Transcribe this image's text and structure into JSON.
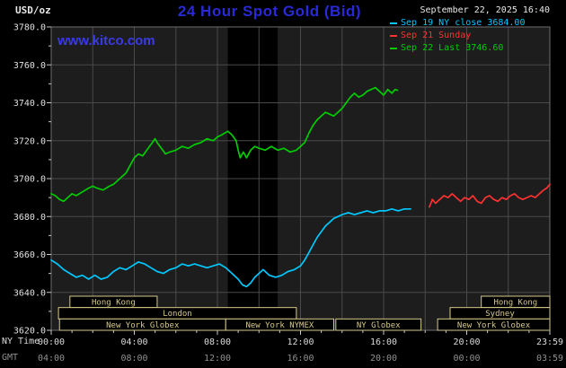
{
  "header": {
    "unit_label": "USD/oz",
    "title": "24 Hour Spot Gold (Bid)",
    "datetime": "September 22, 2025 16:40",
    "kitco_link": "www.kitco.com"
  },
  "legend": {
    "items": [
      {
        "label": "Sep 19 NY close 3684.00",
        "color": "#00c8ff"
      },
      {
        "label": "Sep 21 Sunday",
        "color": "#ff3232"
      },
      {
        "label": "Sep 22 Last 3746.60",
        "color": "#00cd00"
      }
    ]
  },
  "chart_data": {
    "type": "line",
    "title": "24 Hour Spot Gold (Bid)",
    "ylabel": "USD/oz",
    "ylim": [
      3620,
      3780
    ],
    "y_tick_step": 20,
    "y_tick_labels": [
      "3780.0",
      "3760.0",
      "3740.0",
      "3720.0",
      "3700.0",
      "3680.0",
      "3660.0",
      "3640.0",
      "3620.0"
    ],
    "x_caption_ny": "NY Time",
    "x_caption_gmt": "GMT",
    "x_range_hours": [
      0,
      24
    ],
    "x_tick_hours": [
      0,
      4,
      8,
      12,
      16,
      20,
      24
    ],
    "x_tick_labels_ny": [
      "00:00",
      "04:00",
      "08:00",
      "12:00",
      "16:00",
      "20:00",
      "23:59"
    ],
    "x_tick_labels_gmt": [
      "04:00",
      "08:00",
      "12:00",
      "16:00",
      "20:00",
      "00:00",
      "03:59"
    ],
    "grid": true,
    "legend_position": "top-right",
    "dark_band_hours": [
      8.5,
      10.9
    ],
    "series": [
      {
        "name": "Sep 19 NY close 3684.00",
        "color": "#00c8ff",
        "points": [
          [
            0,
            3657
          ],
          [
            0.3,
            3655
          ],
          [
            0.6,
            3652
          ],
          [
            0.9,
            3650
          ],
          [
            1.2,
            3648
          ],
          [
            1.5,
            3649
          ],
          [
            1.8,
            3647
          ],
          [
            2.1,
            3649
          ],
          [
            2.4,
            3647
          ],
          [
            2.7,
            3648
          ],
          [
            3,
            3651
          ],
          [
            3.3,
            3653
          ],
          [
            3.6,
            3652
          ],
          [
            3.9,
            3654
          ],
          [
            4.2,
            3656
          ],
          [
            4.5,
            3655
          ],
          [
            4.8,
            3653
          ],
          [
            5.1,
            3651
          ],
          [
            5.4,
            3650
          ],
          [
            5.7,
            3652
          ],
          [
            6,
            3653
          ],
          [
            6.3,
            3655
          ],
          [
            6.6,
            3654
          ],
          [
            6.9,
            3655
          ],
          [
            7.2,
            3654
          ],
          [
            7.5,
            3653
          ],
          [
            7.8,
            3654
          ],
          [
            8.1,
            3655
          ],
          [
            8.4,
            3653
          ],
          [
            8.7,
            3650
          ],
          [
            9,
            3647
          ],
          [
            9.2,
            3644
          ],
          [
            9.4,
            3643
          ],
          [
            9.6,
            3645
          ],
          [
            9.8,
            3648
          ],
          [
            10,
            3650
          ],
          [
            10.2,
            3652
          ],
          [
            10.5,
            3649
          ],
          [
            10.8,
            3648
          ],
          [
            11.1,
            3649
          ],
          [
            11.4,
            3651
          ],
          [
            11.7,
            3652
          ],
          [
            12,
            3654
          ],
          [
            12.2,
            3657
          ],
          [
            12.4,
            3661
          ],
          [
            12.6,
            3665
          ],
          [
            12.8,
            3669
          ],
          [
            13,
            3672
          ],
          [
            13.2,
            3675
          ],
          [
            13.4,
            3677
          ],
          [
            13.6,
            3679
          ],
          [
            13.8,
            3680
          ],
          [
            14,
            3681
          ],
          [
            14.3,
            3682
          ],
          [
            14.6,
            3681
          ],
          [
            14.9,
            3682
          ],
          [
            15.2,
            3683
          ],
          [
            15.5,
            3682
          ],
          [
            15.8,
            3683
          ],
          [
            16.1,
            3683
          ],
          [
            16.4,
            3684
          ],
          [
            16.7,
            3683
          ],
          [
            17,
            3684
          ],
          [
            17.3,
            3684
          ]
        ]
      },
      {
        "name": "Sep 21 Sunday",
        "color": "#ff3232",
        "points": [
          [
            18.2,
            3685
          ],
          [
            18.35,
            3689
          ],
          [
            18.5,
            3687
          ],
          [
            18.7,
            3689
          ],
          [
            18.9,
            3691
          ],
          [
            19.1,
            3690
          ],
          [
            19.3,
            3692
          ],
          [
            19.5,
            3690
          ],
          [
            19.7,
            3688
          ],
          [
            19.9,
            3690
          ],
          [
            20.1,
            3689
          ],
          [
            20.3,
            3691
          ],
          [
            20.5,
            3688
          ],
          [
            20.7,
            3687
          ],
          [
            20.9,
            3690
          ],
          [
            21.1,
            3691
          ],
          [
            21.3,
            3689
          ],
          [
            21.5,
            3688
          ],
          [
            21.7,
            3690
          ],
          [
            21.9,
            3689
          ],
          [
            22.1,
            3691
          ],
          [
            22.3,
            3692
          ],
          [
            22.5,
            3690
          ],
          [
            22.7,
            3689
          ],
          [
            22.9,
            3690
          ],
          [
            23.1,
            3691
          ],
          [
            23.3,
            3690
          ],
          [
            23.5,
            3692
          ],
          [
            23.7,
            3694
          ],
          [
            23.85,
            3695
          ],
          [
            24,
            3697
          ]
        ]
      },
      {
        "name": "Sep 22 Last 3746.60",
        "color": "#00cd00",
        "points": [
          [
            0,
            3692
          ],
          [
            0.2,
            3691
          ],
          [
            0.4,
            3689
          ],
          [
            0.6,
            3688
          ],
          [
            0.8,
            3690
          ],
          [
            1,
            3692
          ],
          [
            1.2,
            3691
          ],
          [
            1.5,
            3693
          ],
          [
            1.8,
            3695
          ],
          [
            2,
            3696
          ],
          [
            2.2,
            3695
          ],
          [
            2.5,
            3694
          ],
          [
            2.8,
            3696
          ],
          [
            3,
            3697
          ],
          [
            3.2,
            3699
          ],
          [
            3.4,
            3701
          ],
          [
            3.6,
            3703
          ],
          [
            3.8,
            3707
          ],
          [
            4,
            3711
          ],
          [
            4.2,
            3713
          ],
          [
            4.4,
            3712
          ],
          [
            4.6,
            3715
          ],
          [
            4.8,
            3718
          ],
          [
            5,
            3721
          ],
          [
            5.1,
            3719
          ],
          [
            5.3,
            3716
          ],
          [
            5.5,
            3713
          ],
          [
            5.7,
            3714
          ],
          [
            6,
            3715
          ],
          [
            6.3,
            3717
          ],
          [
            6.6,
            3716
          ],
          [
            6.9,
            3718
          ],
          [
            7.2,
            3719
          ],
          [
            7.5,
            3721
          ],
          [
            7.8,
            3720
          ],
          [
            8,
            3722
          ],
          [
            8.2,
            3723
          ],
          [
            8.5,
            3725
          ],
          [
            8.7,
            3723
          ],
          [
            8.9,
            3720
          ],
          [
            9,
            3715
          ],
          [
            9.1,
            3711
          ],
          [
            9.25,
            3714
          ],
          [
            9.4,
            3711
          ],
          [
            9.6,
            3715
          ],
          [
            9.8,
            3717
          ],
          [
            10,
            3716
          ],
          [
            10.3,
            3715
          ],
          [
            10.6,
            3717
          ],
          [
            10.9,
            3715
          ],
          [
            11.2,
            3716
          ],
          [
            11.5,
            3714
          ],
          [
            11.8,
            3715
          ],
          [
            12,
            3717
          ],
          [
            12.2,
            3719
          ],
          [
            12.4,
            3724
          ],
          [
            12.6,
            3728
          ],
          [
            12.8,
            3731
          ],
          [
            13,
            3733
          ],
          [
            13.2,
            3735
          ],
          [
            13.4,
            3734
          ],
          [
            13.6,
            3733
          ],
          [
            13.8,
            3735
          ],
          [
            14,
            3737
          ],
          [
            14.2,
            3740
          ],
          [
            14.4,
            3743
          ],
          [
            14.6,
            3745
          ],
          [
            14.8,
            3743
          ],
          [
            15,
            3744
          ],
          [
            15.2,
            3746
          ],
          [
            15.4,
            3747
          ],
          [
            15.6,
            3748
          ],
          [
            15.8,
            3746
          ],
          [
            16,
            3744
          ],
          [
            16.2,
            3747
          ],
          [
            16.4,
            3745
          ],
          [
            16.55,
            3747
          ],
          [
            16.67,
            3746.6
          ]
        ]
      }
    ],
    "sessions": [
      {
        "label": "Hong Kong",
        "row": 0,
        "start": 0.9,
        "end": 5.1
      },
      {
        "label": "Hong Kong",
        "row": 0,
        "start": 20.7,
        "end": 24
      },
      {
        "label": "London",
        "row": 1,
        "start": 0.35,
        "end": 11.8
      },
      {
        "label": "Sydney",
        "row": 1,
        "start": 19.2,
        "end": 24
      },
      {
        "label": "New York Globex",
        "row": 2,
        "start": 0.4,
        "end": 8.4
      },
      {
        "label": "New York NYMEX",
        "row": 2,
        "start": 8.4,
        "end": 13.6
      },
      {
        "label": "NY Globex",
        "row": 2,
        "start": 13.7,
        "end": 17.8
      },
      {
        "label": "New York Globex",
        "row": 2,
        "start": 18.6,
        "end": 24
      }
    ]
  },
  "colors": {
    "background": "#000000",
    "plot_background": "#1d1d1d",
    "band": "#000000",
    "grid": "#4a4a4a",
    "plot_border": "#6e6e6e",
    "tick": "#c8c8c8",
    "session": "#d6c98a",
    "title_blue": "#2929d6",
    "link_blue": "#3a3ae8",
    "axis_text": "#d9d9d9",
    "gmt_text": "#909090"
  }
}
